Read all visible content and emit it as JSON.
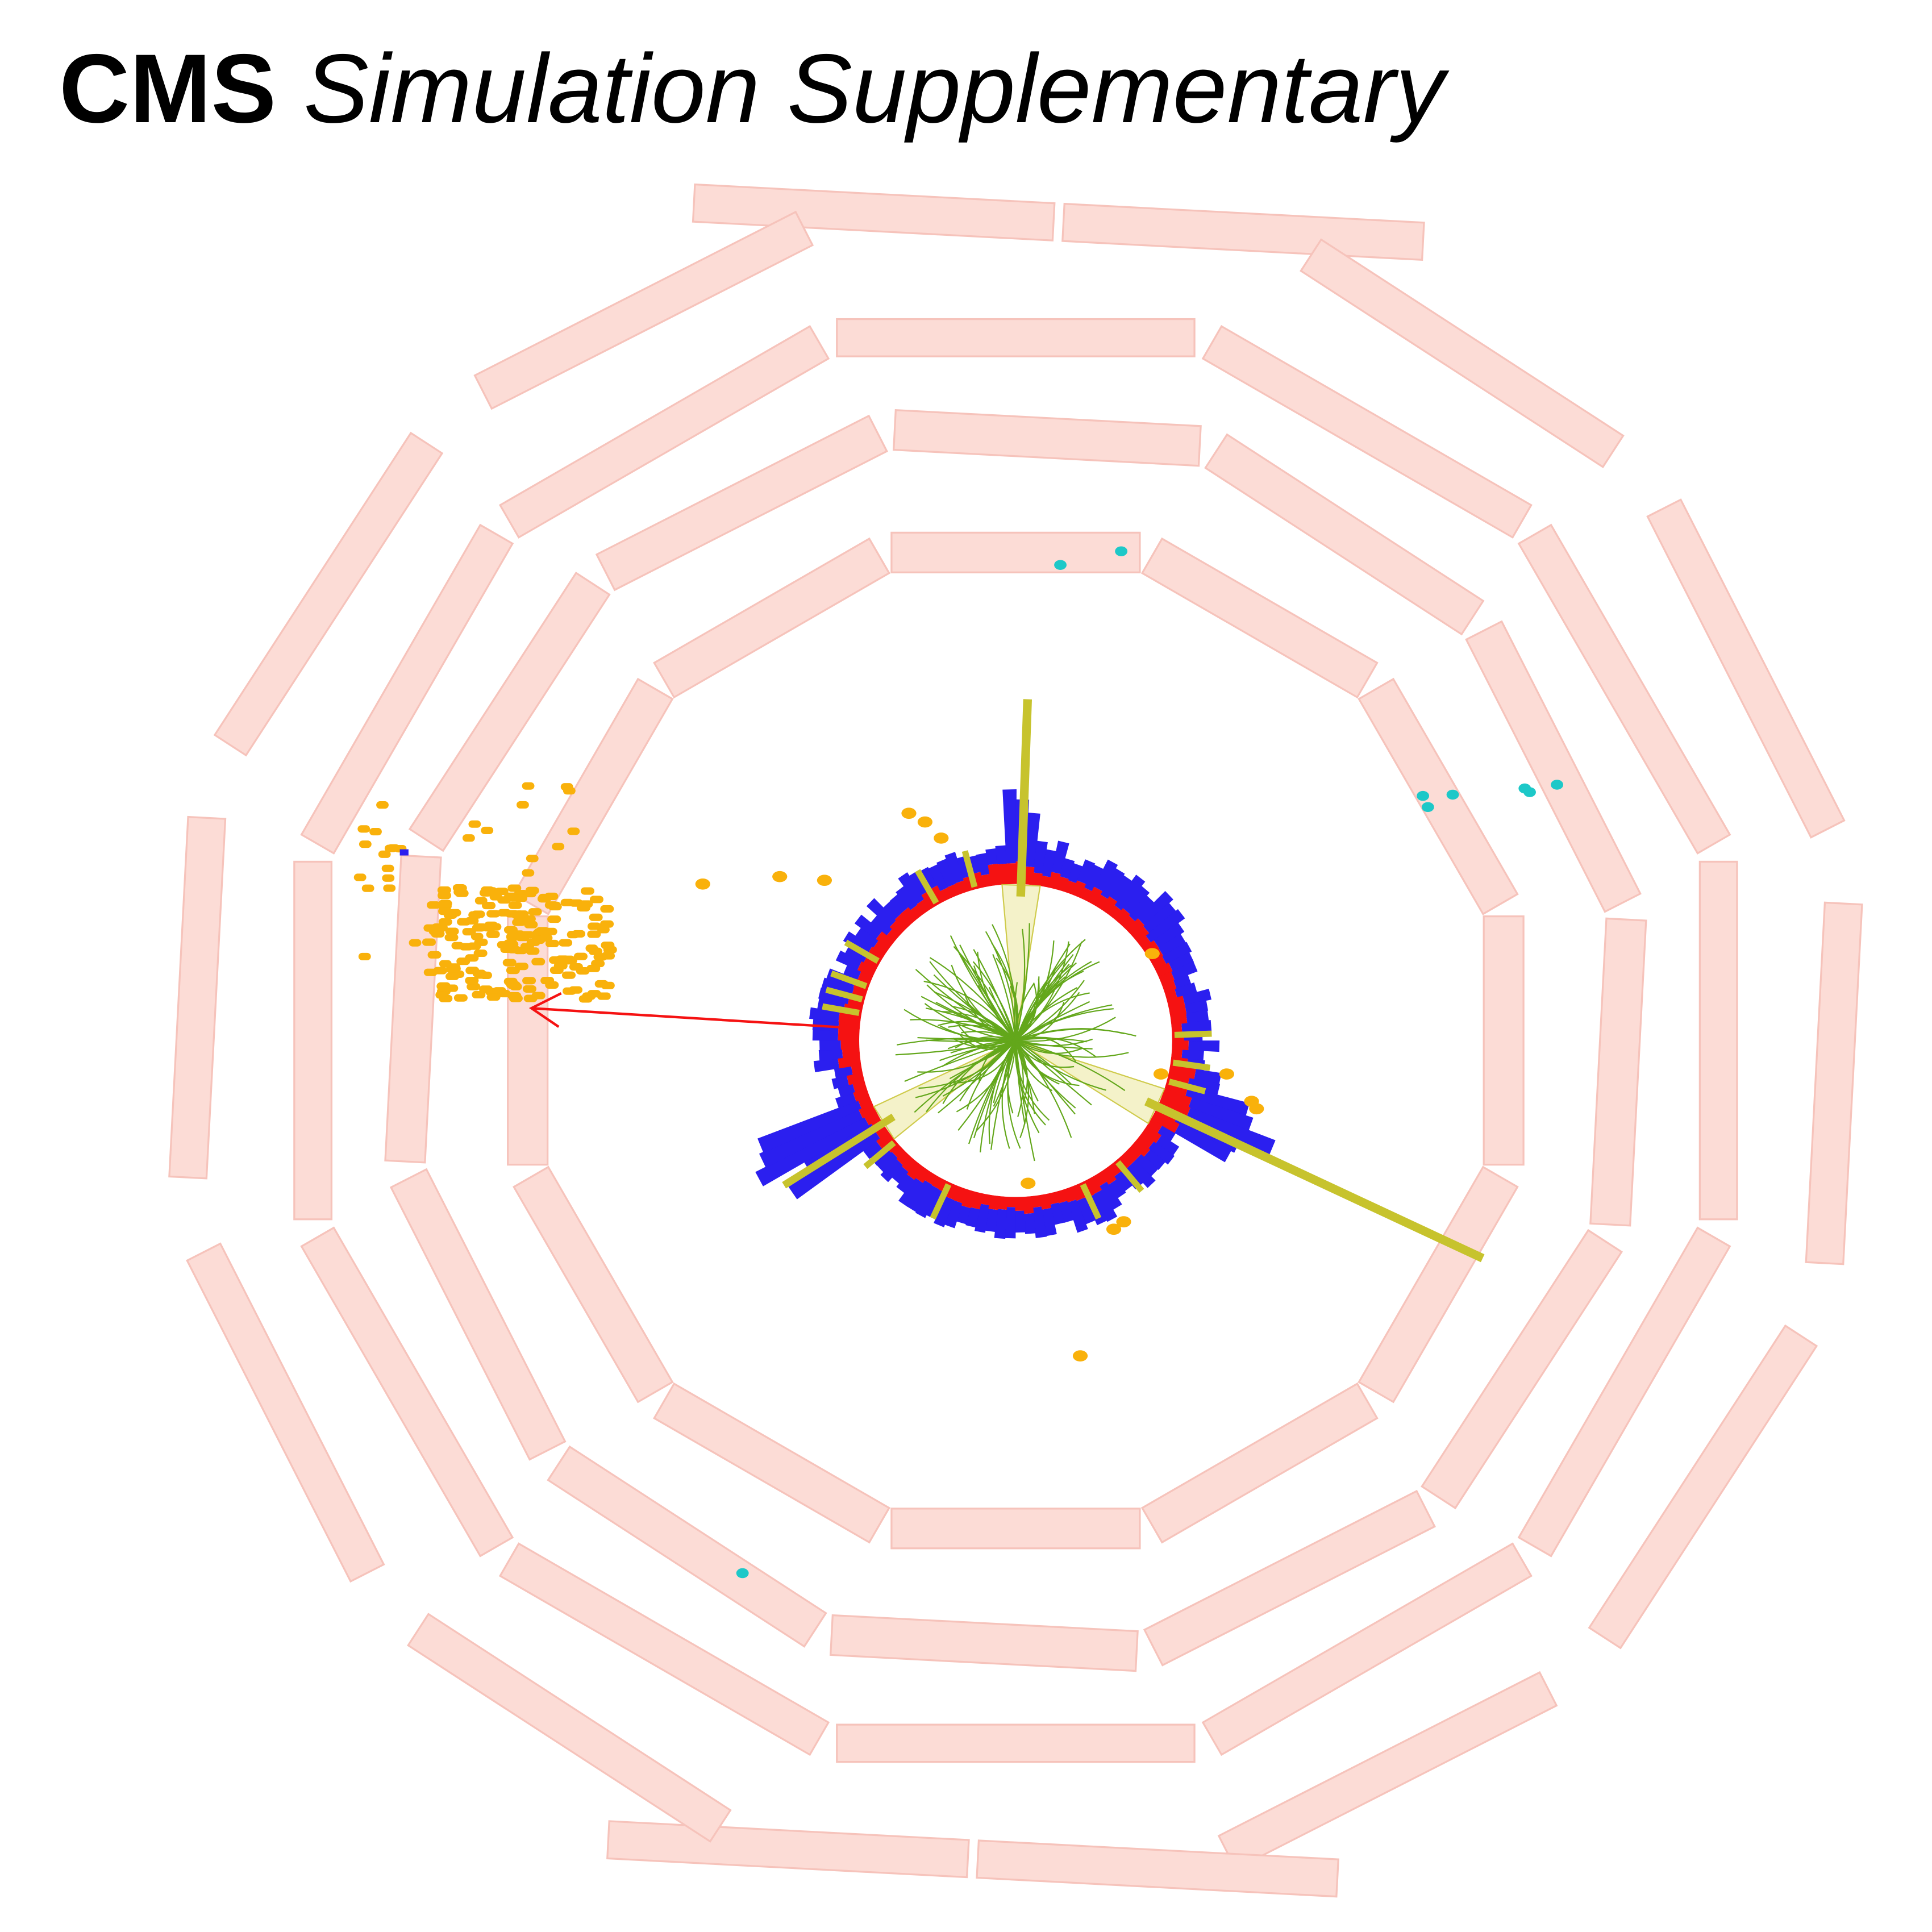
{
  "header": {
    "brand": "CMS",
    "subtitle": "Simulation Supplementary"
  },
  "colors": {
    "muon_chamber": "#fcdcd6",
    "muon_chamber_edge": "#f6c3bb",
    "hcal": "#2b1fef",
    "ecal": "#f51212",
    "tracks": "#63a71b",
    "jets": "#c7c32d",
    "jet_cone": "#f3f0c0",
    "muon_hits_orange": "#f9b10b",
    "muon_hits_cyan": "#1dc8c8",
    "met_arrow": "#f51212"
  },
  "display": {
    "muon_chamber_rings": 4,
    "sectors_per_ring": 12,
    "jets": 3,
    "has_missing_et_arrow": true,
    "has_tracker_tracks": true
  }
}
